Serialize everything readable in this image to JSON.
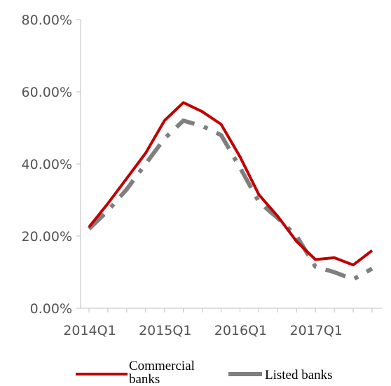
{
  "chart_data": {
    "type": "line",
    "x": [
      "2014Q1",
      "2014Q2",
      "2014Q3",
      "2014Q4",
      "2015Q1",
      "2015Q2",
      "2015Q3",
      "2015Q4",
      "2016Q1",
      "2016Q2",
      "2016Q3",
      "2016Q4",
      "2017Q1",
      "2017Q2",
      "2017Q3",
      "2017Q4"
    ],
    "x_tick_labels": [
      "2014Q1",
      "2015Q1",
      "2016Q1",
      "2017Q1"
    ],
    "y_tick_labels": [
      "0.00%",
      "20.00%",
      "40.00%",
      "60.00%",
      "80.00%"
    ],
    "ylim": [
      0,
      80
    ],
    "grid": false,
    "legend_position": "bottom",
    "series": [
      {
        "name": "Commercial banks",
        "color": "#C00000",
        "line_style": "solid",
        "values": [
          22.5,
          29,
          36,
          43,
          52,
          57,
          54.5,
          51,
          42,
          31.5,
          25.5,
          18.5,
          13.5,
          14,
          12,
          16
        ]
      },
      {
        "name": "Listed banks",
        "color": "#7F7F7F",
        "line_style": "dash-dot",
        "values": [
          22,
          27,
          33,
          40,
          47,
          52,
          50.5,
          48,
          39,
          29.5,
          25,
          20,
          11.5,
          10,
          8,
          11
        ]
      }
    ]
  }
}
